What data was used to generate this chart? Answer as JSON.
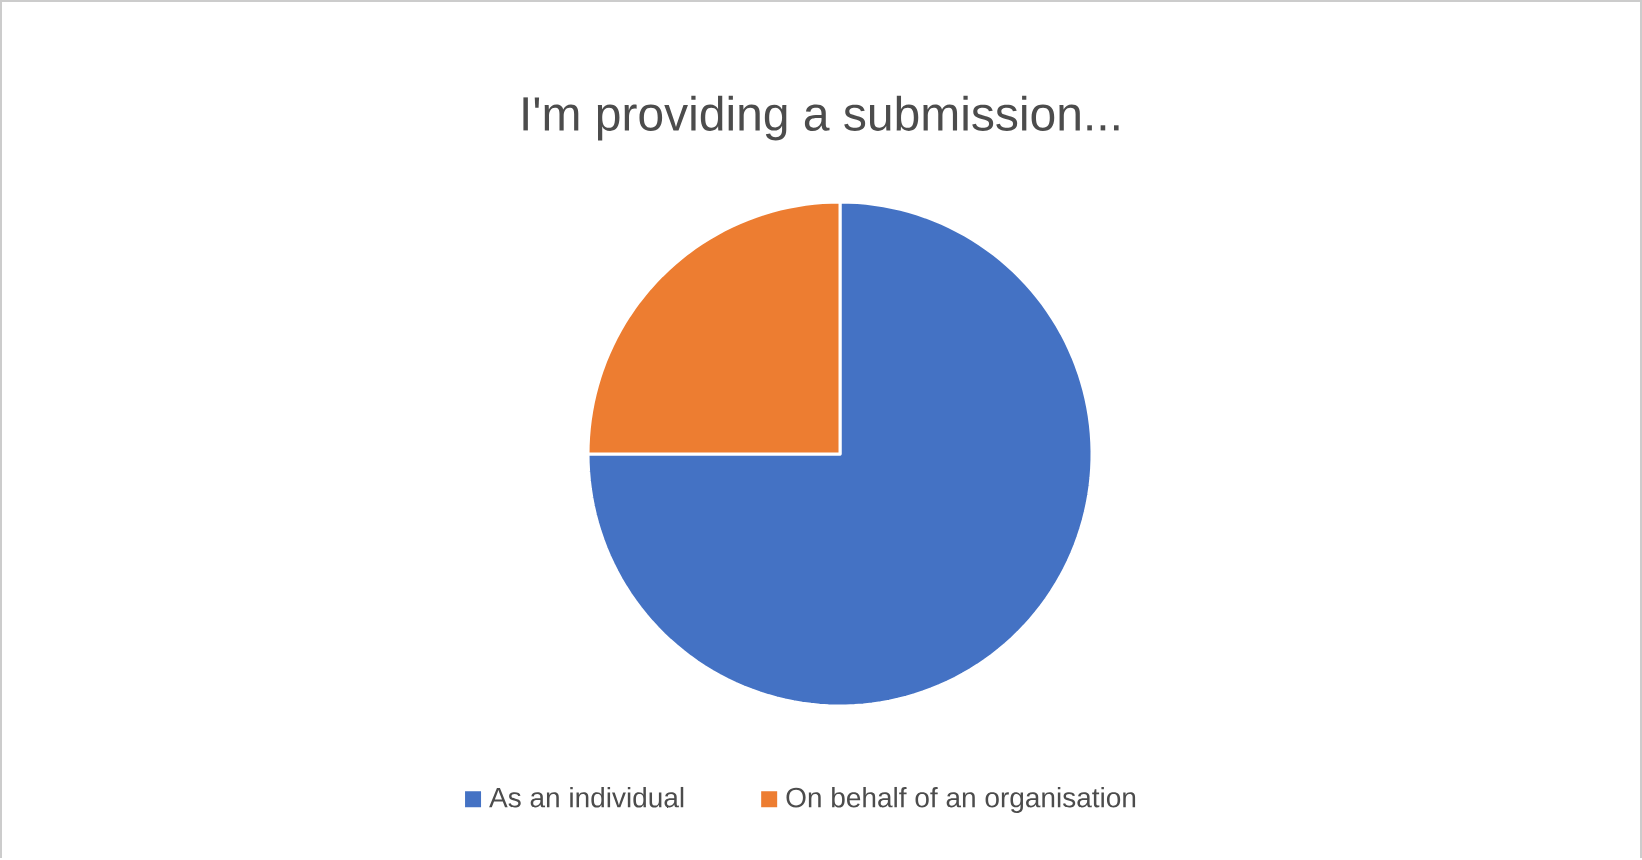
{
  "chart_data": {
    "type": "pie",
    "title": "I'm providing a submission...",
    "categories": [
      "As an individual",
      "On behalf of an organisation"
    ],
    "values": [
      75,
      25
    ],
    "colors": [
      "#4472c4",
      "#ed7d31"
    ],
    "legend": "bottom"
  }
}
